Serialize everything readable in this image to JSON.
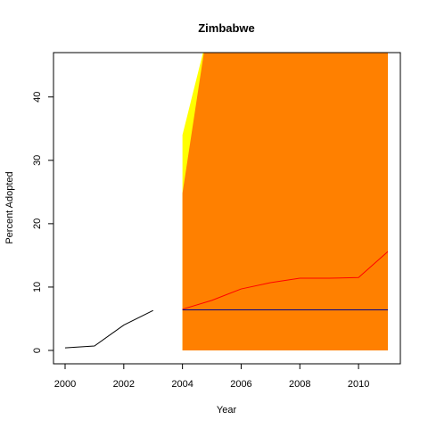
{
  "chart_data": {
    "type": "line",
    "title": "Zimbabwe",
    "xlabel": "Year",
    "ylabel": "Percent Adopted",
    "xlim": [
      2000,
      2011
    ],
    "ylim": [
      0,
      47
    ],
    "xticks": [
      2000,
      2002,
      2004,
      2006,
      2008,
      2010
    ],
    "yticks": [
      0,
      10,
      20,
      30,
      40
    ],
    "grid": false,
    "legend": "none",
    "colors": {
      "observed": "#000000",
      "projection": "#ff0000",
      "baseline": "#00008b",
      "outer_band": "#ffff00",
      "inner_band": "#ff8000",
      "frame": "#000000"
    },
    "bands": [
      {
        "fill": "outer_band",
        "x": [
          2004,
          2004.7,
          2011
        ],
        "upper": [
          34,
          47,
          47
        ],
        "lower": [
          0,
          0,
          0
        ]
      },
      {
        "fill": "inner_band",
        "x": [
          2004,
          2004.73,
          2011
        ],
        "upper": [
          24.8,
          47,
          47
        ],
        "lower": [
          0,
          0,
          0
        ]
      }
    ],
    "series": [
      {
        "x": [
          2000,
          2001,
          2002,
          2003
        ],
        "values": [
          0.4,
          0.7,
          4.0,
          6.3
        ],
        "color": "observed"
      },
      {
        "x": [
          2004,
          2005,
          2006,
          2007,
          2008,
          2009,
          2010,
          2011
        ],
        "values": [
          6.5,
          7.9,
          9.7,
          10.7,
          11.4,
          11.4,
          11.5,
          15.6
        ],
        "color": "projection"
      },
      {
        "x": [
          2004,
          2011
        ],
        "values": [
          6.4,
          6.4
        ],
        "color": "baseline"
      }
    ]
  }
}
